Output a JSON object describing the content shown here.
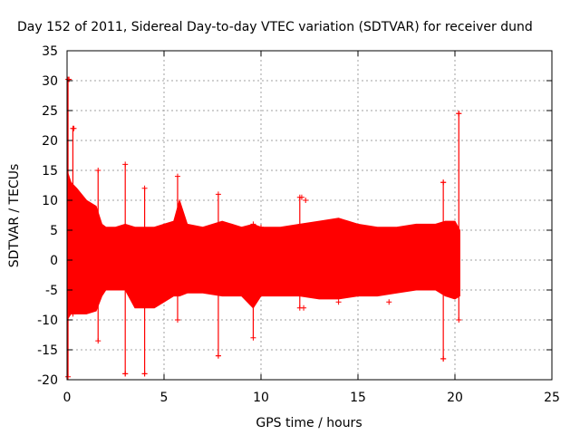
{
  "chart_data": {
    "type": "scatter",
    "title": "Day 152 of 2011, Sidereal Day-to-day VTEC variation (SDTVAR) for receiver dund",
    "xlabel": "GPS time / hours",
    "ylabel": "SDTVAR / TECUs",
    "xlim": [
      0,
      25
    ],
    "ylim": [
      -20,
      35
    ],
    "xticks": [
      0,
      5,
      10,
      15,
      20,
      25
    ],
    "yticks": [
      -20,
      -15,
      -10,
      -5,
      0,
      5,
      10,
      15,
      20,
      25,
      30,
      35
    ],
    "grid": true,
    "series": [
      {
        "name": "SDTVAR",
        "color": "#ff0000",
        "marker": "+",
        "envelope": {
          "x": [
            0,
            0.2,
            0.5,
            1.0,
            1.5,
            1.8,
            2.0,
            2.5,
            3.0,
            3.5,
            4.0,
            4.5,
            5.0,
            5.5,
            5.8,
            6.2,
            7.0,
            8.0,
            9.0,
            9.6,
            10.0,
            11.0,
            12.0,
            13.0,
            14.0,
            15.0,
            16.0,
            17.0,
            18.0,
            19.0,
            19.5,
            20.0,
            20.25
          ],
          "upper": [
            15,
            13,
            12,
            10,
            9,
            6,
            5.5,
            5.5,
            6,
            5.5,
            5.5,
            5.5,
            6,
            6.5,
            10,
            6,
            5.5,
            6.5,
            5.5,
            6,
            5.5,
            5.5,
            6,
            6.5,
            7,
            6,
            5.5,
            5.5,
            6,
            6,
            6.5,
            6.5,
            5
          ],
          "lower": [
            -10,
            -9,
            -9,
            -9,
            -8.5,
            -6,
            -5,
            -5,
            -5,
            -8,
            -8,
            -8,
            -7,
            -6,
            -6,
            -5.5,
            -5.5,
            -6,
            -6,
            -8,
            -6,
            -6,
            -6,
            -6.5,
            -6.5,
            -6,
            -6,
            -5.5,
            -5,
            -5,
            -6,
            -6.5,
            -6
          ]
        },
        "spikes": [
          {
            "x": 0.05,
            "ymin": -19.5,
            "ymax": 30.2
          },
          {
            "x": 0.3,
            "ymin": -9,
            "ymax": 22
          },
          {
            "x": 1.6,
            "ymin": -13.5,
            "ymax": 15
          },
          {
            "x": 3.0,
            "ymin": -19,
            "ymax": 16
          },
          {
            "x": 4.0,
            "ymin": -19,
            "ymax": 12
          },
          {
            "x": 5.7,
            "ymin": -10,
            "ymax": 14
          },
          {
            "x": 7.8,
            "ymin": -16,
            "ymax": 11
          },
          {
            "x": 9.6,
            "ymin": -13,
            "ymax": 6
          },
          {
            "x": 12.0,
            "ymin": -8,
            "ymax": 10.5
          },
          {
            "x": 19.4,
            "ymin": -16.5,
            "ymax": 13
          },
          {
            "x": 20.2,
            "ymin": -10,
            "ymax": 24.5
          }
        ],
        "outliers": [
          {
            "x": 0.1,
            "y": 30.2
          },
          {
            "x": 0.35,
            "y": 22
          },
          {
            "x": 12.1,
            "y": 10.5
          },
          {
            "x": 12.3,
            "y": 10
          },
          {
            "x": 19.4,
            "y": 13
          },
          {
            "x": 19.4,
            "y": -16.5
          },
          {
            "x": 20.2,
            "y": 24.5
          },
          {
            "x": 3.0,
            "y": -19
          },
          {
            "x": 4.0,
            "y": -19
          },
          {
            "x": 7.8,
            "y": -16
          },
          {
            "x": 12.2,
            "y": -8
          },
          {
            "x": 14.0,
            "y": -7
          },
          {
            "x": 16.6,
            "y": -7
          },
          {
            "x": 8.3,
            "y": 5.5
          },
          {
            "x": 10.0,
            "y": 5.5
          }
        ]
      }
    ]
  }
}
